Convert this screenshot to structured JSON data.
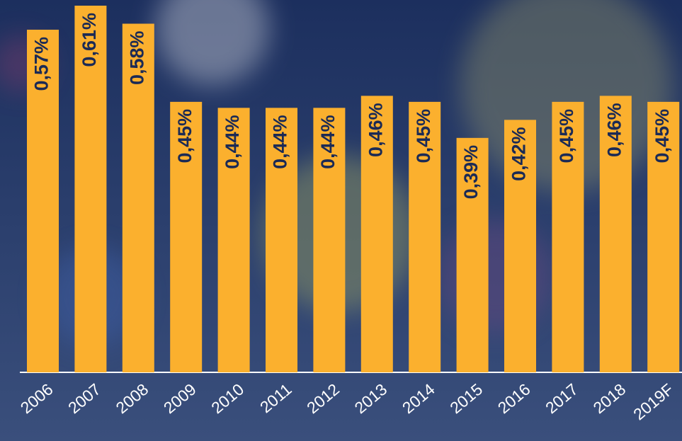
{
  "chart_data": {
    "type": "bar",
    "categories": [
      "2006",
      "2007",
      "2008",
      "2009",
      "2010",
      "2011",
      "2012",
      "2013",
      "2014",
      "2015",
      "2016",
      "2017",
      "2018",
      "2019F"
    ],
    "values": [
      0.57,
      0.61,
      0.58,
      0.45,
      0.44,
      0.44,
      0.44,
      0.46,
      0.45,
      0.39,
      0.42,
      0.45,
      0.46,
      0.45
    ],
    "value_labels": [
      "0,57%",
      "0,61%",
      "0,58%",
      "0,45%",
      "0,44%",
      "0,44%",
      "0,44%",
      "0,46%",
      "0,45%",
      "0,39%",
      "0,42%",
      "0,45%",
      "0,46%",
      "0,45%"
    ],
    "color": "#fbb02e"
  }
}
